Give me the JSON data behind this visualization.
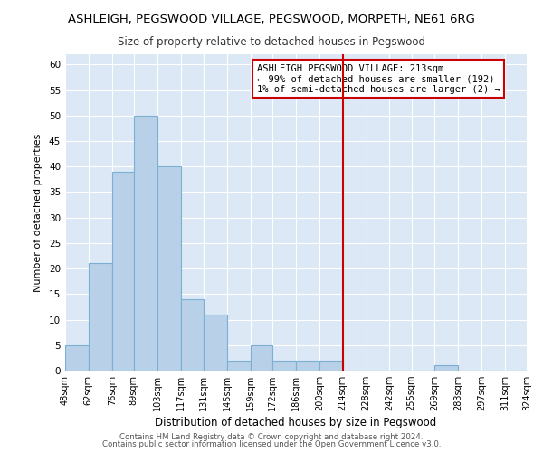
{
  "title": "ASHLEIGH, PEGSWOOD VILLAGE, PEGSWOOD, MORPETH, NE61 6RG",
  "subtitle": "Size of property relative to detached houses in Pegswood",
  "xlabel": "Distribution of detached houses by size in Pegswood",
  "ylabel": "Number of detached properties",
  "bar_edges": [
    48,
    62,
    76,
    89,
    103,
    117,
    131,
    145,
    159,
    172,
    186,
    200,
    214,
    228,
    242,
    255,
    269,
    283,
    297,
    311,
    324
  ],
  "bar_heights": [
    5,
    21,
    39,
    50,
    40,
    14,
    11,
    2,
    5,
    2,
    2,
    2,
    0,
    0,
    0,
    0,
    1,
    0,
    0,
    0
  ],
  "bar_color": "#b8d0e8",
  "bar_edge_color": "#7bafd4",
  "vline_x": 214,
  "vline_color": "#cc0000",
  "annotation_line1": "ASHLEIGH PEGSWOOD VILLAGE: 213sqm",
  "annotation_line2": "← 99% of detached houses are smaller (192)",
  "annotation_line3": "1% of semi-detached houses are larger (2) →",
  "ylim": [
    0,
    62
  ],
  "yticks": [
    0,
    5,
    10,
    15,
    20,
    25,
    30,
    35,
    40,
    45,
    50,
    55,
    60
  ],
  "tick_labels": [
    "48sqm",
    "62sqm",
    "76sqm",
    "89sqm",
    "103sqm",
    "117sqm",
    "131sqm",
    "145sqm",
    "159sqm",
    "172sqm",
    "186sqm",
    "200sqm",
    "214sqm",
    "228sqm",
    "242sqm",
    "255sqm",
    "269sqm",
    "283sqm",
    "297sqm",
    "311sqm",
    "324sqm"
  ],
  "footer_line1": "Contains HM Land Registry data © Crown copyright and database right 2024.",
  "footer_line2": "Contains public sector information licensed under the Open Government Licence v3.0.",
  "plot_bg_color": "#dce8f5",
  "fig_bg_color": "#ffffff",
  "grid_color": "#ffffff"
}
